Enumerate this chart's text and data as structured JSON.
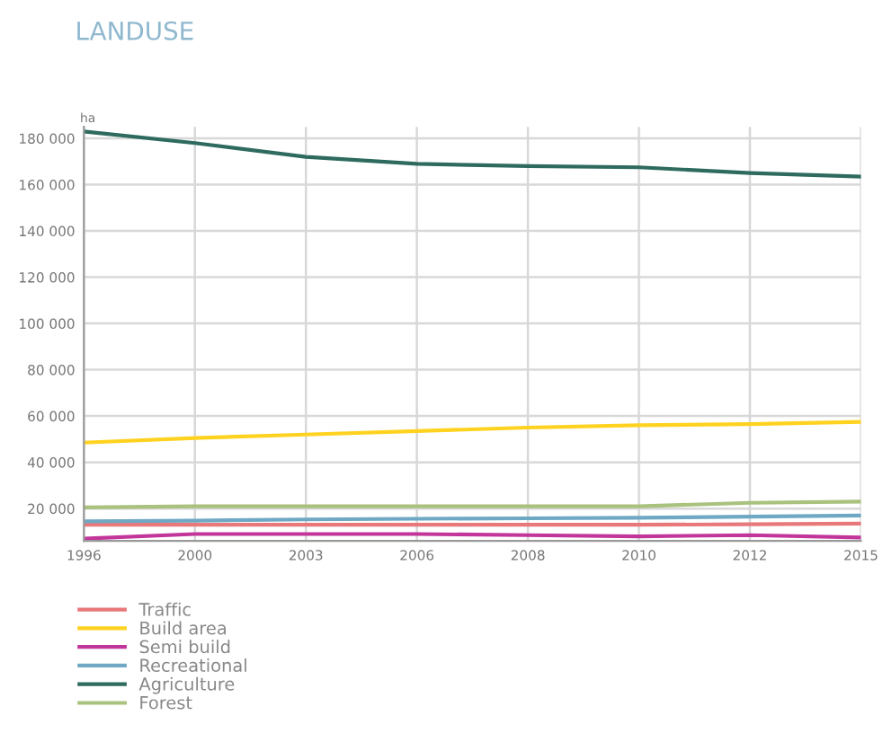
{
  "chart_data": {
    "type": "line",
    "title": "LANDUSE",
    "ylabel": "ha",
    "categories": [
      "1996",
      "2000",
      "2003",
      "2006",
      "2008",
      "2010",
      "2012",
      "2015"
    ],
    "series": [
      {
        "name": "Traffic",
        "color": "#e8787a",
        "values": [
          13000,
          13000,
          13000,
          13000,
          13000,
          13000,
          13200,
          13500
        ]
      },
      {
        "name": "Build area",
        "color": "#ffd21f",
        "values": [
          48500,
          50500,
          52000,
          53500,
          55000,
          56000,
          56500,
          57500
        ]
      },
      {
        "name": "Semi build",
        "color": "#c2359a",
        "values": [
          7000,
          9000,
          9000,
          9000,
          8500,
          8000,
          8500,
          7500
        ]
      },
      {
        "name": "Recreational",
        "color": "#6fa8c4",
        "values": [
          14500,
          14800,
          15300,
          15600,
          15800,
          16000,
          16500,
          17000
        ]
      },
      {
        "name": "Agriculture",
        "color": "#2e6b5e",
        "values": [
          183000,
          178000,
          172000,
          169000,
          168000,
          167500,
          165000,
          163500
        ]
      },
      {
        "name": "Forest",
        "color": "#a9c27d",
        "values": [
          20500,
          21000,
          21000,
          21000,
          21000,
          21000,
          22500,
          23000
        ]
      }
    ],
    "ylim": [
      6000,
      185000
    ],
    "yticks": [
      {
        "value": 20000,
        "label": "20 000"
      },
      {
        "value": 40000,
        "label": "40 000"
      },
      {
        "value": 60000,
        "label": "60 000"
      },
      {
        "value": 80000,
        "label": "80 000"
      },
      {
        "value": 100000,
        "label": "100 000"
      },
      {
        "value": 120000,
        "label": "120 000"
      },
      {
        "value": 140000,
        "label": "140 000"
      },
      {
        "value": 160000,
        "label": "160 000"
      },
      {
        "value": 180000,
        "label": "180 000"
      }
    ],
    "grid": true,
    "legend": "bottom left",
    "marker": "none",
    "line_style": "solid"
  }
}
